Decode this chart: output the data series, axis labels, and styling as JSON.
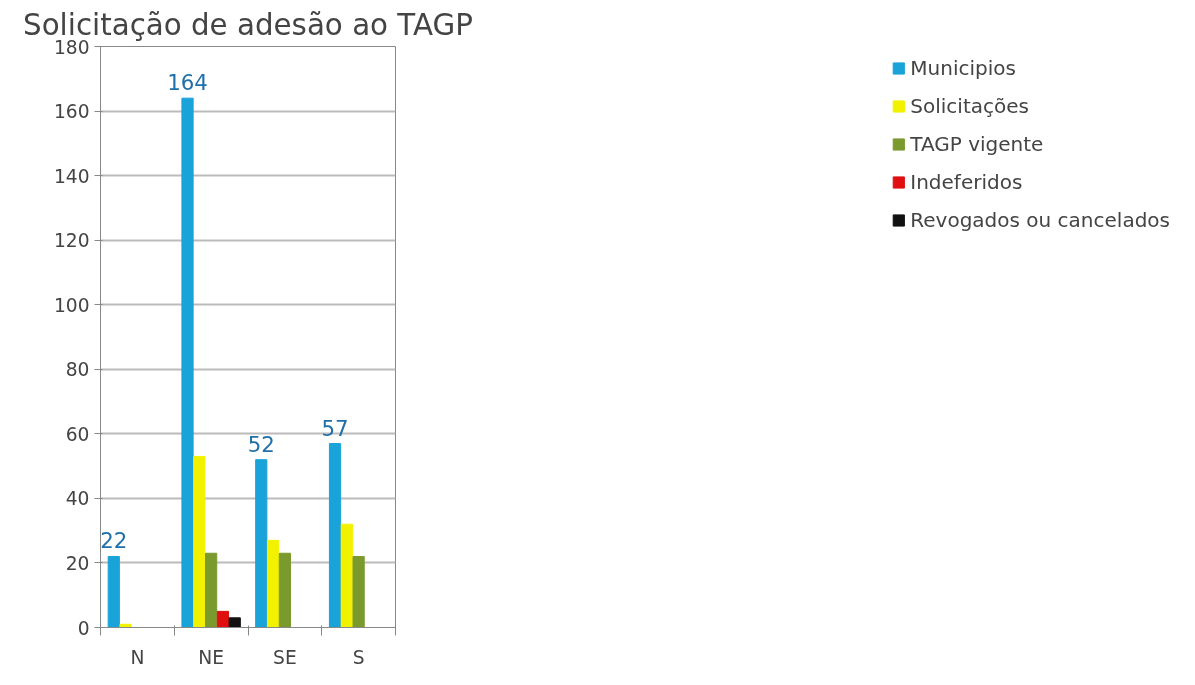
{
  "chart_data": {
    "type": "bar",
    "title": "Solicitação de adesão ao TAGP",
    "categories": [
      "N",
      "NE",
      "SE",
      "S"
    ],
    "series": [
      {
        "name": "Municipios",
        "color": "#1aa3d9",
        "values": [
          22,
          164,
          52,
          57
        ],
        "value_labels": [
          "22",
          "164",
          "52",
          "57"
        ]
      },
      {
        "name": "Solicitações",
        "color": "#f2f200",
        "values": [
          1,
          53,
          27,
          32
        ]
      },
      {
        "name": "TAGP vigente",
        "color": "#7a9a2e",
        "values": [
          0,
          23,
          23,
          22
        ]
      },
      {
        "name": "Indeferidos",
        "color": "#e01010",
        "values": [
          0,
          5,
          0,
          0
        ]
      },
      {
        "name": "Revogados ou cancelados",
        "color": "#111111",
        "values": [
          0,
          3,
          0,
          0
        ]
      }
    ],
    "ylim": [
      0,
      180
    ],
    "yticks": [
      0,
      20,
      40,
      60,
      80,
      100,
      120,
      140,
      160,
      180
    ],
    "grid": "y",
    "legend": "right"
  }
}
